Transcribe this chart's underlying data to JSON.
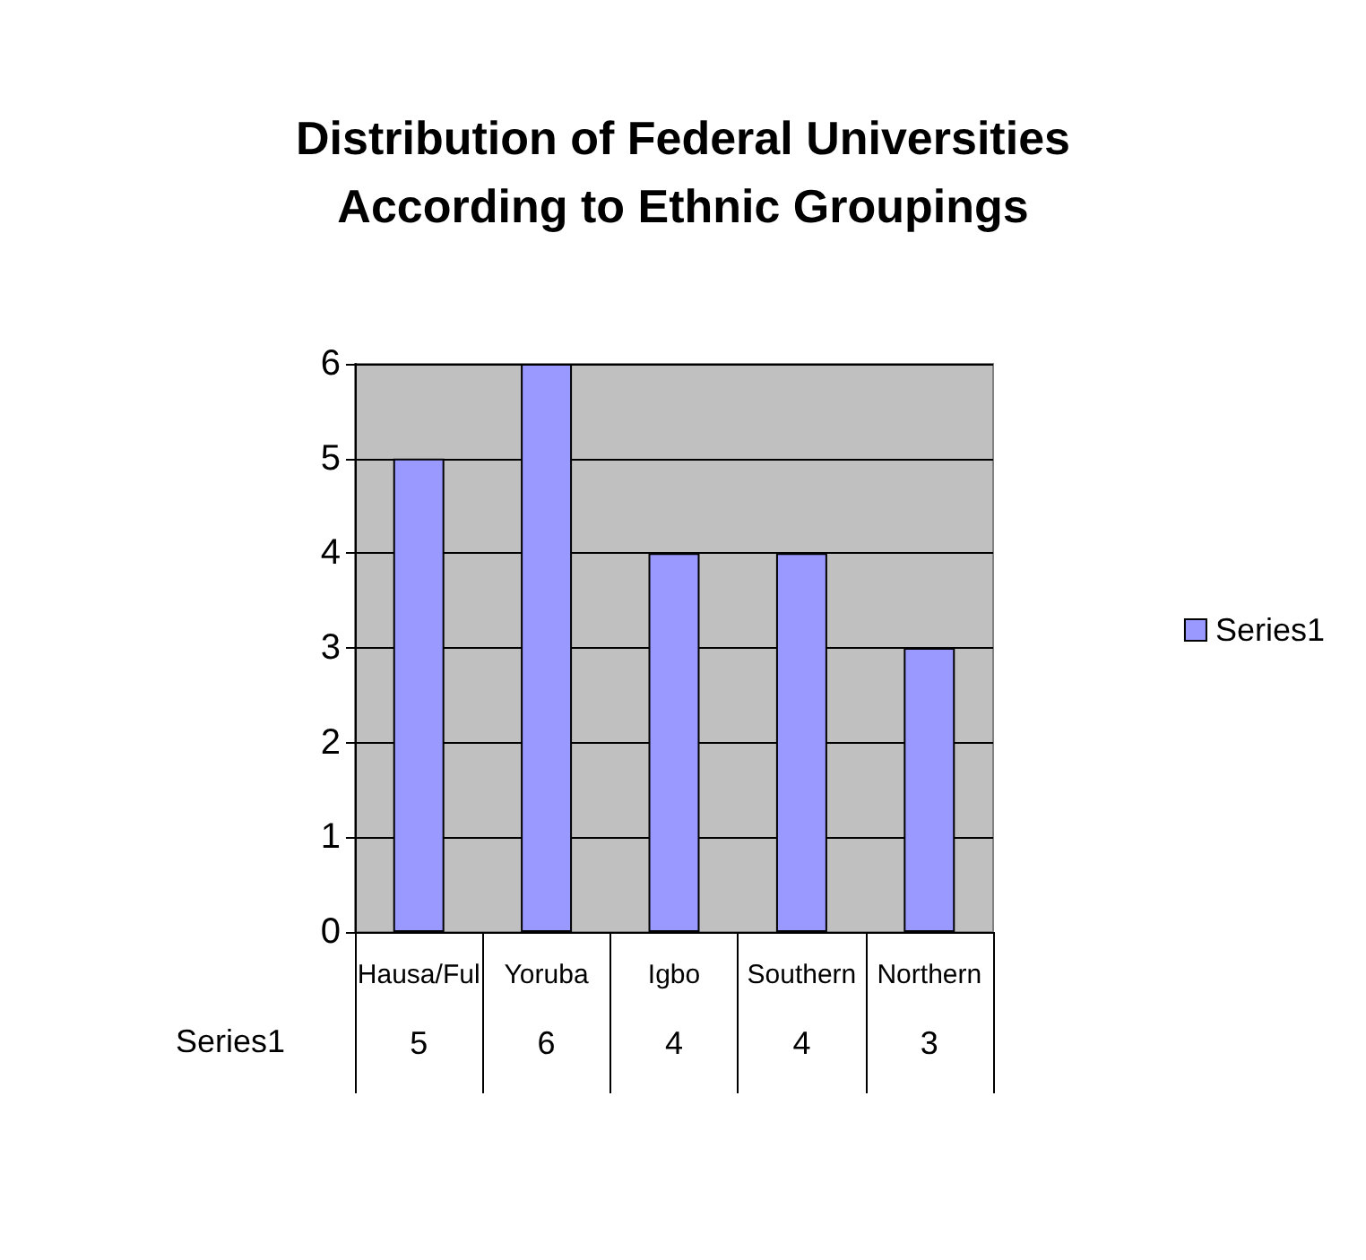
{
  "chart_data": {
    "type": "bar",
    "title": "Distribution of Federal Universities\nAccording to Ethnic Groupings",
    "categories": [
      "Hausa/Ful",
      "Yoruba",
      "Igbo",
      "Southern",
      "Northern"
    ],
    "series": [
      {
        "name": "Series1",
        "color": "#9999ff",
        "values": [
          5,
          6,
          4,
          4,
          3
        ]
      }
    ],
    "ylim": [
      0,
      6
    ],
    "yticks": [
      0,
      1,
      2,
      3,
      4,
      5,
      6
    ],
    "grid": "y",
    "legend": "right",
    "data_labels": true
  }
}
